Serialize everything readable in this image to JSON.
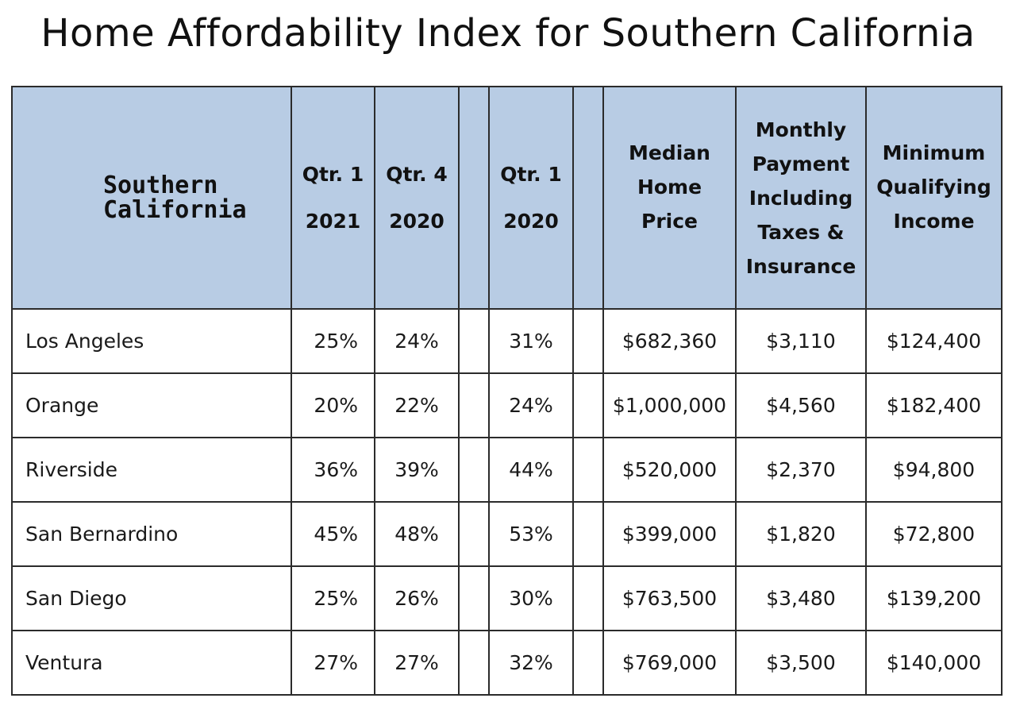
{
  "title": "Home Affordability Index for Southern California",
  "headers": {
    "region": [
      "Southern",
      "California"
    ],
    "q1_2021": [
      "Qtr. 1",
      "2021"
    ],
    "q4_2020": [
      "Qtr. 4",
      "2020"
    ],
    "q1_2020": [
      "Qtr. 1",
      "2020"
    ],
    "median": [
      "Median",
      "Home",
      "Price"
    ],
    "payment": [
      "Monthly",
      "Payment",
      "Including",
      "Taxes &",
      "Insurance"
    ],
    "income": [
      "Minimum",
      "Qualifying",
      "Income"
    ]
  },
  "chart_data": {
    "type": "table",
    "title": "Home Affordability Index for Southern California",
    "columns": [
      "Southern California",
      "Qtr. 1 2021",
      "Qtr. 4 2020",
      "Qtr. 1 2020",
      "Median Home Price",
      "Monthly Payment Including Taxes & Insurance",
      "Minimum Qualifying Income"
    ],
    "rows": [
      [
        "Los Angeles",
        "25%",
        "24%",
        "31%",
        "$682,360",
        "$3,110",
        "$124,400"
      ],
      [
        "Orange",
        "20%",
        "22%",
        "24%",
        "$1,000,000",
        "$4,560",
        "$182,400"
      ],
      [
        "Riverside",
        "36%",
        "39%",
        "44%",
        "$520,000",
        "$2,370",
        "$94,800"
      ],
      [
        "San Bernardino",
        "45%",
        "48%",
        "53%",
        "$399,000",
        "$1,820",
        "$72,800"
      ],
      [
        "San Diego",
        "25%",
        "26%",
        "30%",
        "$763,500",
        "$3,480",
        "$139,200"
      ],
      [
        "Ventura",
        "27%",
        "27%",
        "32%",
        "$769,000",
        "$3,500",
        "$140,000"
      ]
    ]
  }
}
